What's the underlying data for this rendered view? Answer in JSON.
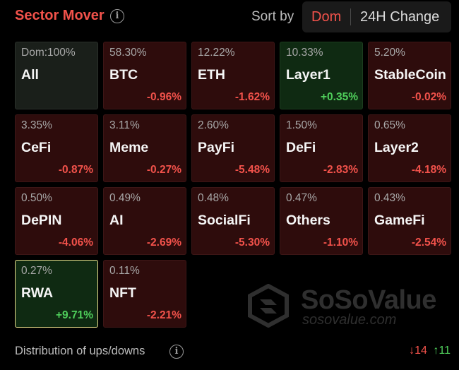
{
  "header": {
    "title": "Sector Mover",
    "sort_label": "Sort by",
    "sort_options": [
      "Dom",
      "24H Change"
    ],
    "sort_selected": "Dom"
  },
  "tiles": [
    {
      "dom": "Dom:100%",
      "name": "All",
      "change": "",
      "trend": "neutral",
      "selected": false
    },
    {
      "dom": "58.30%",
      "name": "BTC",
      "change": "-0.96%",
      "trend": "down",
      "selected": false
    },
    {
      "dom": "12.22%",
      "name": "ETH",
      "change": "-1.62%",
      "trend": "down",
      "selected": false
    },
    {
      "dom": "10.33%",
      "name": "Layer1",
      "change": "+0.35%",
      "trend": "up",
      "selected": false
    },
    {
      "dom": "5.20%",
      "name": "StableCoin",
      "change": "-0.02%",
      "trend": "down",
      "selected": false
    },
    {
      "dom": "3.35%",
      "name": "CeFi",
      "change": "-0.87%",
      "trend": "down",
      "selected": false
    },
    {
      "dom": "3.11%",
      "name": "Meme",
      "change": "-0.27%",
      "trend": "down",
      "selected": false
    },
    {
      "dom": "2.60%",
      "name": "PayFi",
      "change": "-5.48%",
      "trend": "down",
      "selected": false
    },
    {
      "dom": "1.50%",
      "name": "DeFi",
      "change": "-2.83%",
      "trend": "down",
      "selected": false
    },
    {
      "dom": "0.65%",
      "name": "Layer2",
      "change": "-4.18%",
      "trend": "down",
      "selected": false
    },
    {
      "dom": "0.50%",
      "name": "DePIN",
      "change": "-4.06%",
      "trend": "down",
      "selected": false
    },
    {
      "dom": "0.49%",
      "name": "AI",
      "change": "-2.69%",
      "trend": "down",
      "selected": false
    },
    {
      "dom": "0.48%",
      "name": "SocialFi",
      "change": "-5.30%",
      "trend": "down",
      "selected": false
    },
    {
      "dom": "0.47%",
      "name": "Others",
      "change": "-1.10%",
      "trend": "down",
      "selected": false
    },
    {
      "dom": "0.43%",
      "name": "GameFi",
      "change": "-2.54%",
      "trend": "down",
      "selected": false
    },
    {
      "dom": "0.27%",
      "name": "RWA",
      "change": "+9.71%",
      "trend": "up",
      "selected": true
    },
    {
      "dom": "0.11%",
      "name": "NFT",
      "change": "-2.21%",
      "trend": "down",
      "selected": false
    }
  ],
  "watermark": {
    "brand": "SoSoValue",
    "url": "sosovalue.com"
  },
  "footer": {
    "label": "Distribution of ups/downs",
    "down_count": "↓14",
    "up_count": "↑11"
  },
  "colors": {
    "accent": "#f2524b",
    "up": "#4fcf5b",
    "down_tile": "#2e0c0c",
    "up_tile": "#0f2a12",
    "selected_border": "#e7dc8a"
  }
}
